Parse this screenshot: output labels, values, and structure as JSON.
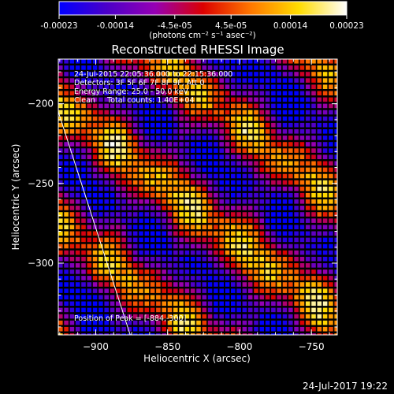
{
  "colorbar": {
    "ticks": [
      "-0.00023",
      "-0.00014",
      "-4.5e-05",
      "4.5e-05",
      "0.00014",
      "0.00023"
    ],
    "tick_values": [
      -0.00023,
      -0.00014,
      -4.5e-05,
      4.5e-05,
      0.00014,
      0.00023
    ],
    "unit_label": "(photons cm⁻² s⁻¹ asec⁻²)",
    "colors": [
      "#0000ff",
      "#4b00c8",
      "#9600b4",
      "#dc0000",
      "#ff7800",
      "#ffdc00",
      "#ffffff"
    ]
  },
  "chart_data": {
    "type": "heatmap",
    "title": "Reconstructed RHESSI Image",
    "xlabel": "Heliocentric X (arcsec)",
    "ylabel": "Heliocentric Y (arcsec)",
    "xlim": [
      -926,
      -732
    ],
    "ylim": [
      -345,
      -172
    ],
    "xticks": [
      -900,
      -850,
      -800,
      -750
    ],
    "yticks": [
      -200,
      -250,
      -300
    ],
    "annotations": [
      "24-Jul-2015 22:05:36.000 to 22:15:36.000",
      "Detectors: 3F 5F 6F 7F 8F 9F, Att 0",
      "Energy Range: 25.0 - 50.0 keV",
      "Clean     Total counts: 1.40E+04"
    ],
    "peak_label": "Position of Peak = [-884,-300]",
    "peak": [
      -884,
      -300
    ],
    "limb_line": [
      [
        -926,
        -205
      ],
      [
        -876,
        -345
      ]
    ],
    "stripe_pattern": {
      "orientation_deg": 35,
      "bright_bands": 3,
      "band_spacing_arcsec": 62
    }
  },
  "footer": {
    "timestamp": "24-Jul-2017 19:22"
  }
}
